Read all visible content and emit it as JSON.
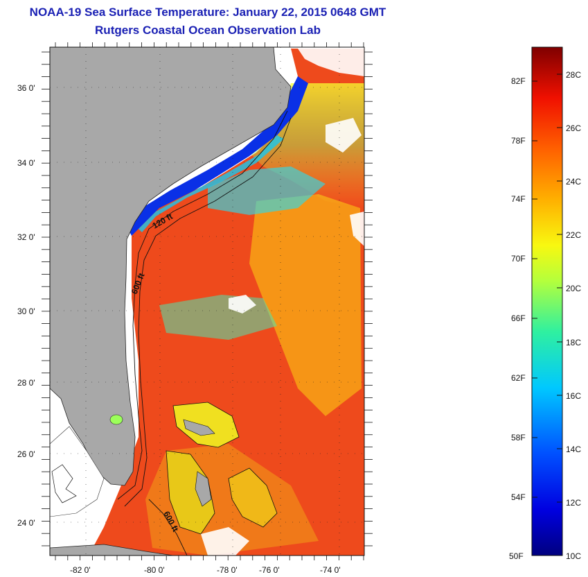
{
  "header": {
    "title": "NOAA-19 Sea Surface Temperature:  January 22, 2015 0648 GMT",
    "subtitle": "Rutgers Coastal Ocean Observation Lab"
  },
  "axes": {
    "lat_labels": [
      "36 0'",
      "34 0'",
      "32 0'",
      "30 0'",
      "28 0'",
      "26 0'",
      "24 0'"
    ],
    "lon_labels": [
      "-82 0'",
      "-80 0'",
      "-78 0'",
      "-76 0'",
      "-74 0'"
    ]
  },
  "contours": {
    "label_120": "120 ft",
    "label_600_north": "600 ft",
    "label_600_south": "600 ft"
  },
  "colorbar": {
    "fahrenheit": [
      "82F",
      "78F",
      "74F",
      "70F",
      "66F",
      "62F",
      "58F",
      "54F",
      "50F"
    ],
    "celsius": [
      "28C",
      "26C",
      "24C",
      "22C",
      "20C",
      "18C",
      "16C",
      "14C",
      "12C",
      "10C"
    ],
    "colors": [
      "#7f0000",
      "#cc0000",
      "#ff2200",
      "#ff7a00",
      "#ffc800",
      "#f0ff10",
      "#9cff5a",
      "#2ff0c8",
      "#00a8ff",
      "#0046ff",
      "#0000c8",
      "#00007f"
    ]
  },
  "palette": {
    "land": "#a8a8a8",
    "ocean_warm": "#ee4a1c",
    "title_color": "#1a20b4"
  }
}
